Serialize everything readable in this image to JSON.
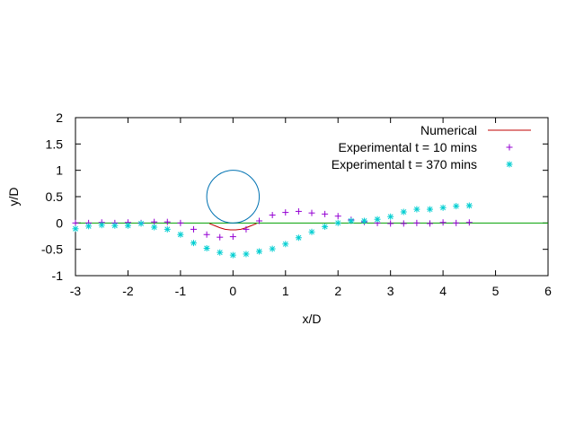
{
  "chart_data": {
    "type": "scatter",
    "xlabel": "x/D",
    "ylabel": "y/D",
    "xlim": [
      -3,
      6
    ],
    "ylim": [
      -1,
      2
    ],
    "xticks": [
      "-3",
      "-2",
      "-1",
      "0",
      "1",
      "2",
      "3",
      "4",
      "5",
      "6"
    ],
    "yticks": [
      "-1",
      "-0.5",
      "0",
      "0.5",
      "1",
      "1.5",
      "2"
    ],
    "grid": false,
    "legend_position": "top-right",
    "cylinder": {
      "cx": 0,
      "cy": 0.5,
      "r": 0.5,
      "color": "#0072B2"
    },
    "baseline": {
      "y": 0,
      "color": "#00A000"
    },
    "series": [
      {
        "name": "Numerical",
        "marker": "line",
        "color": "#C00000",
        "x": [
          -0.45,
          -0.35,
          -0.25,
          -0.15,
          -0.05,
          0.0,
          0.05,
          0.15,
          0.25,
          0.35,
          0.45
        ],
        "y": [
          -0.01,
          -0.05,
          -0.09,
          -0.12,
          -0.13,
          -0.13,
          -0.13,
          -0.12,
          -0.09,
          -0.05,
          -0.01
        ]
      },
      {
        "name": "Experimental t = 10 mins",
        "marker": "plus",
        "color": "#9400D3",
        "x": [
          -3.0,
          -2.75,
          -2.5,
          -2.25,
          -2.0,
          -1.75,
          -1.5,
          -1.25,
          -1.0,
          -0.75,
          -0.5,
          -0.25,
          0.0,
          0.25,
          0.5,
          0.75,
          1.0,
          1.25,
          1.5,
          1.75,
          2.0,
          2.25,
          2.5,
          2.75,
          3.0,
          3.25,
          3.5,
          3.75,
          4.0,
          4.25,
          4.5
        ],
        "y": [
          0.0,
          0.0,
          0.01,
          0.0,
          0.01,
          0.0,
          0.02,
          0.02,
          0.0,
          -0.12,
          -0.22,
          -0.27,
          -0.26,
          -0.12,
          0.04,
          0.15,
          0.2,
          0.22,
          0.19,
          0.17,
          0.13,
          0.06,
          0.02,
          0.0,
          -0.01,
          -0.01,
          0.0,
          -0.01,
          0.01,
          0.0,
          0.01
        ]
      },
      {
        "name": "Experimental t = 370 mins",
        "marker": "star",
        "color": "#00CED1",
        "x": [
          -3.0,
          -2.75,
          -2.5,
          -2.25,
          -2.0,
          -1.75,
          -1.5,
          -1.25,
          -1.0,
          -0.75,
          -0.5,
          -0.25,
          0.0,
          0.25,
          0.5,
          0.75,
          1.0,
          1.25,
          1.5,
          1.75,
          2.0,
          2.25,
          2.5,
          2.75,
          3.0,
          3.25,
          3.5,
          3.75,
          4.0,
          4.25,
          4.5
        ],
        "y": [
          -0.11,
          -0.06,
          -0.04,
          -0.05,
          -0.05,
          -0.01,
          -0.08,
          -0.12,
          -0.22,
          -0.38,
          -0.48,
          -0.56,
          -0.61,
          -0.59,
          -0.54,
          -0.49,
          -0.4,
          -0.28,
          -0.17,
          -0.07,
          0.0,
          0.04,
          0.04,
          0.07,
          0.12,
          0.21,
          0.26,
          0.26,
          0.29,
          0.32,
          0.33
        ]
      }
    ]
  }
}
